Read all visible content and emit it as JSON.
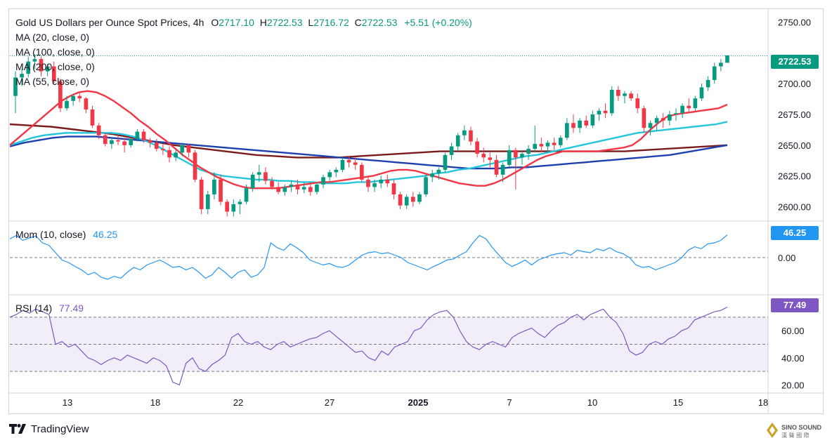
{
  "header": {
    "symbol": "Gold US Dollars per Ounce Spot Prices, 4h",
    "open_label": "O",
    "open": "2717.10",
    "high_label": "H",
    "high": "2722.53",
    "low_label": "L",
    "low": "2716.72",
    "close_label": "C",
    "close": "2722.53",
    "change": "+5.51 (+0.20%)"
  },
  "indicators": {
    "ma20": "MA (20, close, 0)",
    "ma100": "MA (100, close, 0)",
    "ma200": "MA (200, close, 0)",
    "ma55": "MA (55, close, 0)",
    "mom_label": "Mom (10, close)",
    "mom_value": "46.25",
    "rsi_label": "RSI (14)",
    "rsi_value": "77.49"
  },
  "tags": {
    "price": "2722.53",
    "mom": "46.25",
    "rsi": "77.49"
  },
  "footer": {
    "brand": "TradingView",
    "watermark": "SINO SOUND"
  },
  "colors": {
    "up": "#089981",
    "down": "#f23645",
    "ma20": "#f23645",
    "ma55": "#26c6da",
    "ma100": "#1e40af",
    "ma200": "#7b1c1c",
    "mom": "#2196f3",
    "rsi": "#7e57c2"
  },
  "chart_data": [
    {
      "type": "candlestick",
      "panel": "price",
      "title": "Gold US Dollars per Ounce Spot Prices, 4h",
      "y_ticks": [
        2600.0,
        2625.0,
        2650.0,
        2675.0,
        2700.0,
        2750.0
      ],
      "ylim": [
        2590,
        2760
      ],
      "last_price": 2722.53,
      "x_ticks": [
        "13",
        "18",
        "22",
        "27",
        "2025",
        "7",
        "10",
        "15",
        "18"
      ],
      "ohlc": [
        [
          2690,
          2710,
          2676,
          2705
        ],
        [
          2705,
          2712,
          2698,
          2708
        ],
        [
          2708,
          2722,
          2705,
          2718
        ],
        [
          2718,
          2724,
          2712,
          2720
        ],
        [
          2720,
          2722,
          2706,
          2710
        ],
        [
          2710,
          2716,
          2706,
          2714
        ],
        [
          2714,
          2718,
          2700,
          2702
        ],
        [
          2702,
          2704,
          2677,
          2680
        ],
        [
          2680,
          2690,
          2678,
          2686
        ],
        [
          2686,
          2692,
          2682,
          2690
        ],
        [
          2690,
          2693,
          2685,
          2688
        ],
        [
          2688,
          2689,
          2676,
          2679
        ],
        [
          2679,
          2682,
          2664,
          2666
        ],
        [
          2666,
          2668,
          2655,
          2658
        ],
        [
          2658,
          2660,
          2649,
          2651
        ],
        [
          2651,
          2656,
          2647,
          2654
        ],
        [
          2654,
          2658,
          2650,
          2653
        ],
        [
          2653,
          2656,
          2644,
          2650
        ],
        [
          2650,
          2656,
          2648,
          2655
        ],
        [
          2655,
          2663,
          2653,
          2661
        ],
        [
          2661,
          2663,
          2652,
          2654
        ],
        [
          2654,
          2656,
          2648,
          2652
        ],
        [
          2652,
          2655,
          2645,
          2647
        ],
        [
          2647,
          2651,
          2642,
          2646
        ],
        [
          2646,
          2649,
          2636,
          2640
        ],
        [
          2640,
          2646,
          2637,
          2644
        ],
        [
          2644,
          2652,
          2641,
          2650
        ],
        [
          2650,
          2651,
          2640,
          2644
        ],
        [
          2644,
          2646,
          2620,
          2622
        ],
        [
          2622,
          2624,
          2594,
          2598
        ],
        [
          2598,
          2613,
          2594,
          2610
        ],
        [
          2610,
          2628,
          2606,
          2622
        ],
        [
          2622,
          2626,
          2601,
          2604
        ],
        [
          2604,
          2606,
          2592,
          2596
        ],
        [
          2596,
          2606,
          2592,
          2602
        ],
        [
          2602,
          2606,
          2594,
          2604
        ],
        [
          2604,
          2618,
          2602,
          2615
        ],
        [
          2615,
          2628,
          2612,
          2626
        ],
        [
          2626,
          2634,
          2620,
          2628
        ],
        [
          2628,
          2632,
          2618,
          2621
        ],
        [
          2621,
          2624,
          2614,
          2616
        ],
        [
          2616,
          2620,
          2610,
          2612
        ],
        [
          2612,
          2618,
          2609,
          2616
        ],
        [
          2616,
          2621,
          2612,
          2618
        ],
        [
          2618,
          2622,
          2610,
          2614
        ],
        [
          2614,
          2620,
          2611,
          2616
        ],
        [
          2616,
          2618,
          2609,
          2612
        ],
        [
          2612,
          2620,
          2610,
          2618
        ],
        [
          2618,
          2626,
          2615,
          2624
        ],
        [
          2624,
          2630,
          2620,
          2628
        ],
        [
          2628,
          2632,
          2624,
          2630
        ],
        [
          2630,
          2640,
          2628,
          2638
        ],
        [
          2638,
          2641,
          2632,
          2636
        ],
        [
          2636,
          2640,
          2630,
          2634
        ],
        [
          2634,
          2636,
          2620,
          2622
        ],
        [
          2622,
          2624,
          2612,
          2616
        ],
        [
          2616,
          2622,
          2612,
          2619
        ],
        [
          2619,
          2625,
          2615,
          2622
        ],
        [
          2622,
          2626,
          2616,
          2619
        ],
        [
          2619,
          2622,
          2606,
          2610
        ],
        [
          2610,
          2612,
          2598,
          2601
        ],
        [
          2601,
          2610,
          2598,
          2608
        ],
        [
          2608,
          2612,
          2600,
          2604
        ],
        [
          2604,
          2612,
          2602,
          2610
        ],
        [
          2610,
          2626,
          2608,
          2624
        ],
        [
          2624,
          2630,
          2620,
          2627
        ],
        [
          2627,
          2632,
          2622,
          2630
        ],
        [
          2630,
          2644,
          2628,
          2642
        ],
        [
          2642,
          2652,
          2638,
          2649
        ],
        [
          2649,
          2660,
          2646,
          2658
        ],
        [
          2658,
          2666,
          2654,
          2662
        ],
        [
          2662,
          2665,
          2650,
          2653
        ],
        [
          2653,
          2656,
          2640,
          2643
        ],
        [
          2643,
          2648,
          2636,
          2640
        ],
        [
          2640,
          2644,
          2632,
          2638
        ],
        [
          2638,
          2642,
          2624,
          2626
        ],
        [
          2626,
          2636,
          2620,
          2634
        ],
        [
          2634,
          2650,
          2632,
          2646
        ],
        [
          2646,
          2648,
          2614,
          2640
        ],
        [
          2640,
          2646,
          2634,
          2643
        ],
        [
          2643,
          2650,
          2638,
          2647
        ],
        [
          2647,
          2666,
          2644,
          2651
        ],
        [
          2651,
          2656,
          2644,
          2649
        ],
        [
          2649,
          2654,
          2644,
          2652
        ],
        [
          2652,
          2656,
          2646,
          2650
        ],
        [
          2650,
          2658,
          2648,
          2656
        ],
        [
          2656,
          2672,
          2654,
          2668
        ],
        [
          2668,
          2675,
          2660,
          2664
        ],
        [
          2664,
          2672,
          2660,
          2670
        ],
        [
          2670,
          2674,
          2664,
          2666
        ],
        [
          2666,
          2678,
          2664,
          2675
        ],
        [
          2675,
          2680,
          2670,
          2678
        ],
        [
          2678,
          2684,
          2672,
          2676
        ],
        [
          2676,
          2698,
          2674,
          2695
        ],
        [
          2695,
          2698,
          2686,
          2690
        ],
        [
          2690,
          2694,
          2684,
          2692
        ],
        [
          2692,
          2694,
          2686,
          2688
        ],
        [
          2688,
          2692,
          2676,
          2680
        ],
        [
          2680,
          2682,
          2660,
          2664
        ],
        [
          2664,
          2670,
          2658,
          2668
        ],
        [
          2668,
          2674,
          2662,
          2672
        ],
        [
          2672,
          2676,
          2664,
          2670
        ],
        [
          2670,
          2678,
          2666,
          2675
        ],
        [
          2675,
          2680,
          2670,
          2676
        ],
        [
          2676,
          2684,
          2672,
          2682
        ],
        [
          2682,
          2688,
          2676,
          2680
        ],
        [
          2680,
          2690,
          2678,
          2688
        ],
        [
          2688,
          2700,
          2686,
          2697
        ],
        [
          2697,
          2706,
          2694,
          2703
        ],
        [
          2703,
          2717,
          2700,
          2714
        ],
        [
          2714,
          2720,
          2710,
          2717
        ],
        [
          2717,
          2723,
          2717,
          2723
        ]
      ],
      "series": [
        {
          "name": "MA (20, close, 0)",
          "values": [
            2650,
            2656,
            2662,
            2668,
            2674,
            2680,
            2686,
            2690,
            2693,
            2694,
            2693,
            2690,
            2686,
            2681,
            2676,
            2670,
            2665,
            2659,
            2654,
            2648,
            2642,
            2637,
            2632,
            2628,
            2624,
            2621,
            2618,
            2616,
            2615,
            2615,
            2615,
            2615,
            2616,
            2617,
            2618,
            2619,
            2620,
            2620,
            2621,
            2622,
            2623,
            2624,
            2625,
            2627,
            2629,
            2630,
            2630,
            2629,
            2627,
            2625,
            2623,
            2621,
            2619,
            2618,
            2617,
            2617,
            2619,
            2622,
            2626,
            2630,
            2634,
            2638,
            2641,
            2643,
            2645,
            2645,
            2645,
            2645,
            2645,
            2646,
            2647,
            2648,
            2650,
            2655,
            2662,
            2668,
            2673,
            2675,
            2676,
            2677,
            2678,
            2679,
            2680,
            2683
          ]
        },
        {
          "name": "MA (55, close, 0)",
          "values": [
            2650,
            2653,
            2656,
            2658,
            2659,
            2660,
            2660,
            2660,
            2660,
            2660,
            2659,
            2657,
            2654,
            2650,
            2645,
            2640,
            2635,
            2630,
            2627,
            2625,
            2624,
            2623,
            2622,
            2622,
            2621,
            2621,
            2620,
            2620,
            2619,
            2619,
            2619,
            2620,
            2620,
            2621,
            2622,
            2623,
            2624,
            2625,
            2627,
            2628,
            2630,
            2631,
            2633,
            2635,
            2637,
            2639,
            2641,
            2642,
            2644,
            2646,
            2648,
            2650,
            2652,
            2654,
            2656,
            2658,
            2660,
            2661,
            2662,
            2663,
            2664,
            2665,
            2666,
            2667,
            2669
          ]
        },
        {
          "name": "MA (100, close, 0)",
          "values": [
            2649,
            2652,
            2654,
            2656,
            2657,
            2657,
            2657,
            2656,
            2655,
            2654,
            2653,
            2652,
            2651,
            2650,
            2649,
            2648,
            2647,
            2646,
            2645,
            2644,
            2643,
            2642,
            2641,
            2640,
            2639,
            2638,
            2637,
            2636,
            2635,
            2634,
            2633,
            2632,
            2631,
            2631,
            2631,
            2632,
            2632,
            2633,
            2634,
            2635,
            2636,
            2637,
            2638,
            2639,
            2640,
            2641,
            2642,
            2644,
            2646,
            2648,
            2650
          ]
        },
        {
          "name": "MA (200, close, 0)",
          "values": [
            2667,
            2666,
            2665,
            2663,
            2661,
            2659,
            2656,
            2653,
            2650,
            2648,
            2646,
            2644,
            2642,
            2641,
            2640,
            2640,
            2640,
            2641,
            2642,
            2643,
            2644,
            2645,
            2645,
            2645,
            2645,
            2645,
            2645,
            2645,
            2645,
            2645,
            2645,
            2646,
            2647,
            2648,
            2649,
            2650
          ]
        }
      ]
    },
    {
      "type": "line",
      "panel": "momentum",
      "title": "Mom (10, close)",
      "y_ticks": [
        0.0
      ],
      "last_value": 46.25,
      "series": [
        {
          "name": "Mom (10, close)",
          "values": [
            38,
            45,
            35,
            40,
            44,
            30,
            25,
            10,
            -5,
            -10,
            -18,
            -25,
            -35,
            -30,
            -40,
            -44,
            -38,
            -42,
            -30,
            -20,
            -25,
            -15,
            -10,
            -5,
            -12,
            -20,
            -18,
            -25,
            -20,
            -30,
            -42,
            -35,
            -20,
            -30,
            -42,
            -30,
            -25,
            -40,
            -35,
            -20,
            30,
            20,
            15,
            28,
            20,
            10,
            -5,
            -10,
            -15,
            -12,
            -18,
            -20,
            -15,
            -5,
            5,
            10,
            12,
            8,
            10,
            5,
            0,
            -10,
            -15,
            -20,
            -25,
            -18,
            -12,
            -5,
            -3,
            5,
            12,
            30,
            45,
            38,
            20,
            5,
            -10,
            -18,
            -12,
            -5,
            -15,
            -5,
            0,
            5,
            8,
            10,
            5,
            15,
            12,
            10,
            18,
            14,
            20,
            12,
            8,
            0,
            -15,
            -20,
            -18,
            -25,
            -20,
            -15,
            -10,
            0,
            15,
            22,
            18,
            28,
            30,
            35,
            46.25
          ]
        }
      ]
    },
    {
      "type": "line",
      "panel": "rsi",
      "title": "RSI (14)",
      "y_ticks": [
        20.0,
        40.0,
        60.0
      ],
      "bands": [
        30,
        50,
        70
      ],
      "last_value": 77.49,
      "series": [
        {
          "name": "RSI (14)",
          "values": [
            70,
            72,
            75,
            73,
            76,
            74,
            72,
            50,
            52,
            48,
            50,
            45,
            40,
            38,
            35,
            38,
            40,
            38,
            42,
            40,
            38,
            36,
            40,
            38,
            34,
            22,
            20,
            36,
            40,
            32,
            30,
            35,
            38,
            42,
            55,
            58,
            52,
            50,
            52,
            48,
            46,
            50,
            52,
            48,
            50,
            52,
            54,
            55,
            58,
            60,
            56,
            52,
            48,
            44,
            45,
            40,
            38,
            45,
            42,
            48,
            50,
            52,
            60,
            62,
            68,
            72,
            74,
            75,
            70,
            60,
            52,
            48,
            46,
            50,
            52,
            50,
            48,
            55,
            58,
            60,
            62,
            58,
            55,
            60,
            64,
            66,
            70,
            72,
            68,
            72,
            74,
            76,
            70,
            66,
            58,
            45,
            42,
            44,
            50,
            52,
            50,
            54,
            56,
            60,
            62,
            68,
            70,
            72,
            74,
            75,
            77.49
          ]
        }
      ]
    }
  ]
}
